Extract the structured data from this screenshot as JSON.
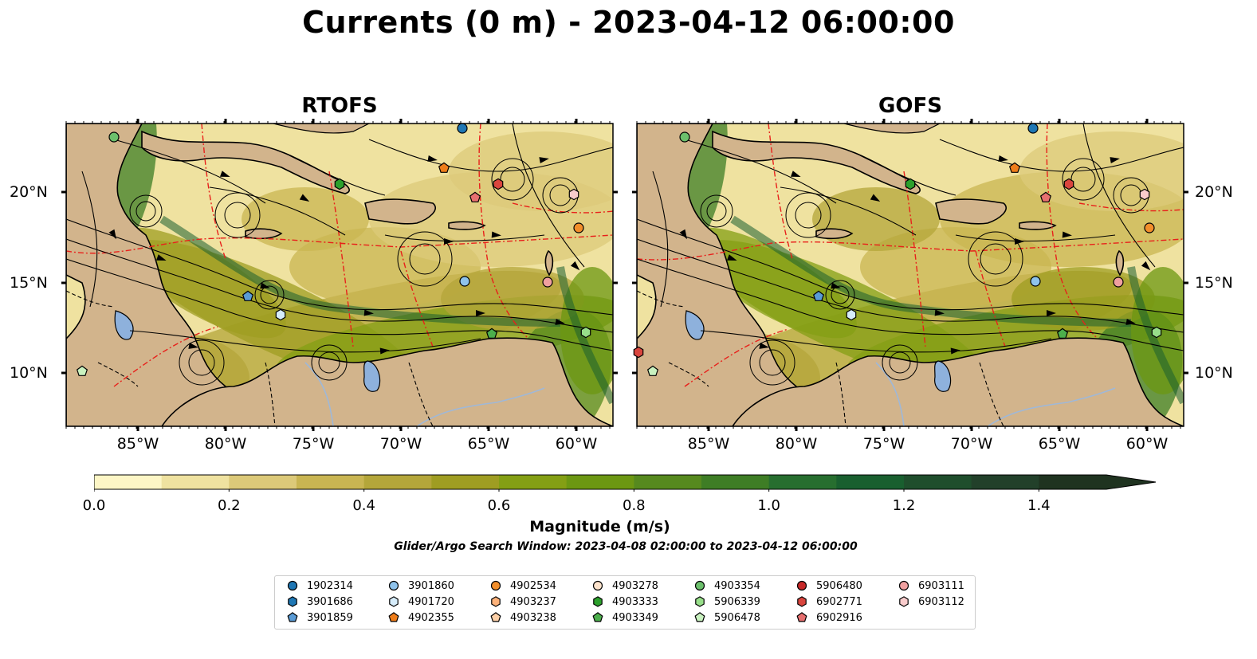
{
  "title": "Currents (0 m) - 2023-04-12 06:00:00",
  "panels": [
    {
      "name": "RTOFS"
    },
    {
      "name": "GOFS"
    }
  ],
  "axes": {
    "lon_ticks": [
      "85°W",
      "80°W",
      "75°W",
      "70°W",
      "65°W",
      "60°W"
    ],
    "lat_ticks": [
      "20°N",
      "15°N",
      "10°N"
    ]
  },
  "colorbar": {
    "label": "Magnitude (m/s)",
    "ticks": [
      "0.0",
      "0.2",
      "0.4",
      "0.6",
      "0.8",
      "1.0",
      "1.2",
      "1.4"
    ],
    "range": [
      0.0,
      1.5
    ],
    "extend": "max",
    "colors": [
      "#fdf6c6",
      "#efe2a0",
      "#dcc979",
      "#c9b552",
      "#b4a63a",
      "#9f9d22",
      "#849f14",
      "#6c9712",
      "#56891e",
      "#3e7d25",
      "#276e2f",
      "#195f2f",
      "#1f4e2c",
      "#22402a",
      "#1f3320"
    ]
  },
  "search_window": "Glider/Argo Search Window: 2023-04-08 02:00:00 to 2023-04-12 06:00:00",
  "legend": {
    "columns": [
      [
        {
          "id": "1902314",
          "color": "#1f77b4",
          "marker": "circle"
        },
        {
          "id": "3901686",
          "color": "#1f77b4",
          "marker": "hexagon"
        },
        {
          "id": "3901859",
          "color": "#5a9bd5",
          "marker": "pentagon"
        }
      ],
      [
        {
          "id": "3901860",
          "color": "#8fc3ec",
          "marker": "circle"
        },
        {
          "id": "4901720",
          "color": "#d6ecfa",
          "marker": "hexagon"
        },
        {
          "id": "4902355",
          "color": "#ee7d1a",
          "marker": "pentagon"
        }
      ],
      [
        {
          "id": "4902534",
          "color": "#f28e2b",
          "marker": "circle"
        },
        {
          "id": "4903237",
          "color": "#fdb27a",
          "marker": "hexagon"
        },
        {
          "id": "4903238",
          "color": "#fdd0a8",
          "marker": "pentagon"
        }
      ],
      [
        {
          "id": "4903278",
          "color": "#fde3cc",
          "marker": "circle"
        },
        {
          "id": "4903333",
          "color": "#2ca02c",
          "marker": "hexagon"
        },
        {
          "id": "4903349",
          "color": "#4caf4c",
          "marker": "pentagon"
        }
      ],
      [
        {
          "id": "4903354",
          "color": "#6cc06c",
          "marker": "circle"
        },
        {
          "id": "5906339",
          "color": "#98df8a",
          "marker": "hexagon"
        },
        {
          "id": "5906478",
          "color": "#c9f2c0",
          "marker": "pentagon"
        }
      ],
      [
        {
          "id": "5906480",
          "color": "#c62828",
          "marker": "circle"
        },
        {
          "id": "6902771",
          "color": "#d9453e",
          "marker": "hexagon"
        },
        {
          "id": "6902916",
          "color": "#e77070",
          "marker": "pentagon"
        }
      ],
      [
        {
          "id": "6903111",
          "color": "#f0a0a0",
          "marker": "circle"
        },
        {
          "id": "6903112",
          "color": "#f9cccc",
          "marker": "hexagon"
        }
      ]
    ]
  },
  "colors": {
    "land": "#d2b48c",
    "lake": "#8eb1dc",
    "eez_lines": "#e8201b"
  }
}
